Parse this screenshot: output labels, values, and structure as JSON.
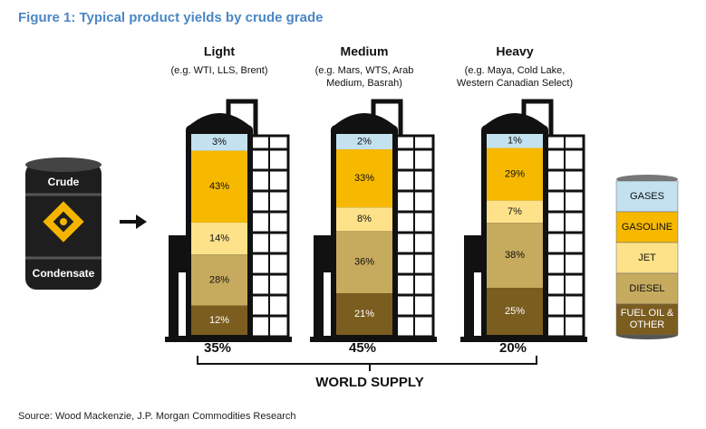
{
  "chart_data": {
    "type": "stacked_column",
    "title": "Figure 1: Typical product yields by crude grade",
    "source": "Source: Wood Mackenzie, J.P. Morgan Commodities Research",
    "barrel_labels": [
      "Crude",
      "Condensate"
    ],
    "categories": [
      "Light",
      "Medium",
      "Heavy"
    ],
    "examples": [
      [
        "(e.g. WTI, LLS, Brent)"
      ],
      [
        "(e.g. Mars, WTS, Arab",
        "Medium, Basrah)"
      ],
      [
        "(e.g. Maya, Cold Lake,",
        "Western Canadian Select)"
      ]
    ],
    "series": [
      {
        "name": "GASES",
        "color": "#c3e1ef",
        "values": [
          3,
          2,
          1
        ],
        "value_labels": [
          "3%",
          "2%",
          "1%"
        ]
      },
      {
        "name": "GASOLINE",
        "color": "#f6b900",
        "values": [
          43,
          33,
          29
        ],
        "value_labels": [
          "43%",
          "33%",
          "29%"
        ]
      },
      {
        "name": "JET",
        "color": "#fde28a",
        "values": [
          14,
          8,
          7
        ],
        "value_labels": [
          "14%",
          "8%",
          "7%"
        ]
      },
      {
        "name": "DIESEL",
        "color": "#c6aa5e",
        "values": [
          28,
          36,
          38
        ],
        "value_labels": [
          "28%",
          "36%",
          "38%"
        ]
      },
      {
        "name": "FUEL OIL & OTHER",
        "color": "#7b5d20",
        "values": [
          12,
          21,
          25
        ],
        "value_labels": [
          "12%",
          "21%",
          "25%"
        ]
      }
    ],
    "supply": {
      "label": "WORLD SUPPLY",
      "values": [
        35,
        45,
        20
      ],
      "value_labels": [
        "35%",
        "45%",
        "20%"
      ]
    }
  }
}
